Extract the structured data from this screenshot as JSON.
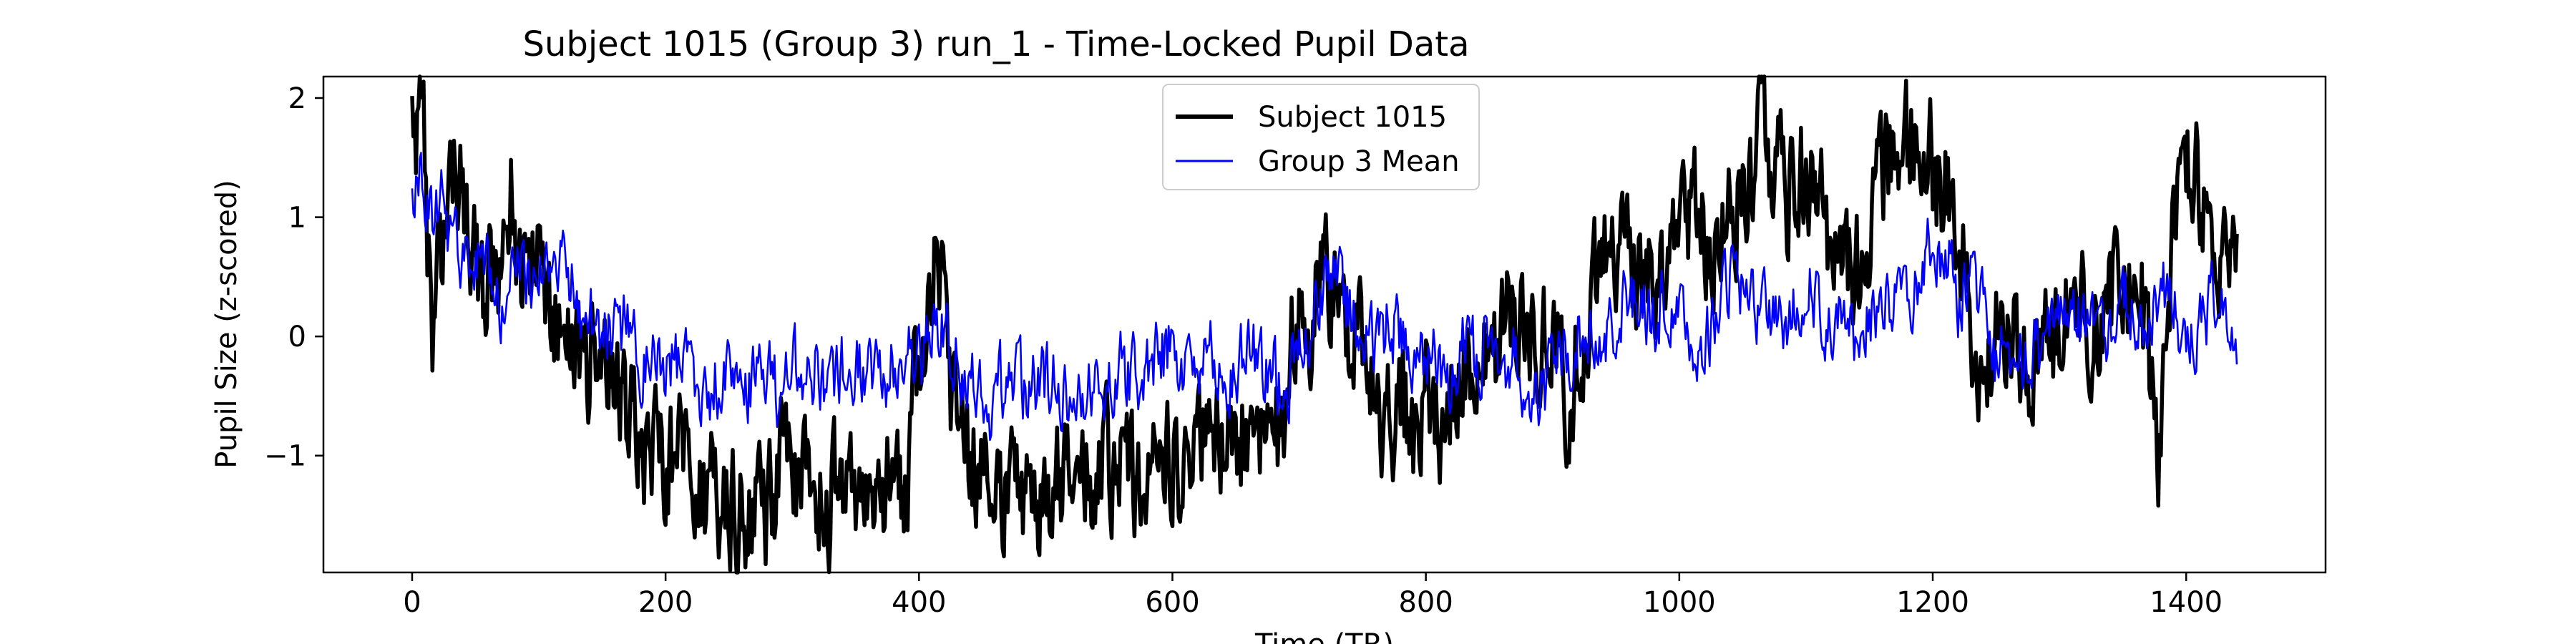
{
  "chart_data": {
    "type": "line",
    "title": "Subject 1015 (Group 3) run_1 - Time-Locked Pupil Data",
    "xlabel": "Time (TR)",
    "ylabel": "Pupil Size (z-scored)",
    "xlim": [
      -70,
      1510
    ],
    "ylim": [
      -1.98,
      2.18
    ],
    "x_ticks": [
      0,
      200,
      400,
      600,
      800,
      1000,
      1200,
      1400
    ],
    "y_ticks": [
      -1,
      0,
      1,
      2
    ],
    "x_tick_labels": [
      "0",
      "200",
      "400",
      "600",
      "800",
      "1000",
      "1200",
      "1400"
    ],
    "y_tick_labels": [
      "−1",
      "0",
      "1",
      "2"
    ],
    "grid": false,
    "legend_position": "top-center",
    "x_range": [
      0,
      1440
    ],
    "series": [
      {
        "name": "Subject 1015",
        "color": "#000000",
        "style": "thick",
        "anchors": [
          [
            0,
            1.9
          ],
          [
            3,
            1.5
          ],
          [
            6,
            1.9
          ],
          [
            9,
            1.6
          ],
          [
            12,
            0.7
          ],
          [
            16,
            -0.1
          ],
          [
            20,
            0.4
          ],
          [
            28,
            1.3
          ],
          [
            35,
            1.5
          ],
          [
            45,
            1.0
          ],
          [
            55,
            0.3
          ],
          [
            62,
            0.5
          ],
          [
            70,
            0.2
          ],
          [
            78,
            1.2
          ],
          [
            85,
            0.4
          ],
          [
            95,
            0.8
          ],
          [
            105,
            0.3
          ],
          [
            115,
            0.2
          ],
          [
            125,
            -0.2
          ],
          [
            140,
            -0.3
          ],
          [
            150,
            0.1
          ],
          [
            165,
            -0.6
          ],
          [
            175,
            -0.8
          ],
          [
            185,
            -1.0
          ],
          [
            195,
            -0.8
          ],
          [
            205,
            -1.1
          ],
          [
            215,
            -0.9
          ],
          [
            230,
            -1.4
          ],
          [
            245,
            -1.3
          ],
          [
            255,
            -1.5
          ],
          [
            270,
            -1.55
          ],
          [
            285,
            -1.35
          ],
          [
            295,
            -0.9
          ],
          [
            305,
            -1.2
          ],
          [
            320,
            -1.45
          ],
          [
            335,
            -1.3
          ],
          [
            350,
            -1.5
          ],
          [
            365,
            -1.2
          ],
          [
            380,
            -1.4
          ],
          [
            390,
            -1.2
          ],
          [
            398,
            -0.3
          ],
          [
            405,
            0.2
          ],
          [
            412,
            0.9
          ],
          [
            418,
            0.6
          ],
          [
            425,
            -0.5
          ],
          [
            440,
            -1.0
          ],
          [
            455,
            -1.3
          ],
          [
            470,
            -1.2
          ],
          [
            485,
            -1.35
          ],
          [
            495,
            -1.6
          ],
          [
            510,
            -1.3
          ],
          [
            525,
            -1.2
          ],
          [
            540,
            -1.1
          ],
          [
            555,
            -1.0
          ],
          [
            570,
            -1.3
          ],
          [
            585,
            -1.05
          ],
          [
            600,
            -1.1
          ],
          [
            615,
            -0.8
          ],
          [
            630,
            -1.0
          ],
          [
            645,
            -0.9
          ],
          [
            660,
            -0.7
          ],
          [
            675,
            -1.0
          ],
          [
            685,
            -0.8
          ],
          [
            693,
            -0.2
          ],
          [
            700,
            0.3
          ],
          [
            710,
            0.2
          ],
          [
            720,
            0.5
          ],
          [
            730,
            0.3
          ],
          [
            740,
            0.0
          ],
          [
            752,
            -0.2
          ],
          [
            765,
            -0.8
          ],
          [
            780,
            -0.5
          ],
          [
            790,
            -0.9
          ],
          [
            800,
            -0.4
          ],
          [
            810,
            -0.7
          ],
          [
            820,
            -0.5
          ],
          [
            835,
            -0.1
          ],
          [
            850,
            -0.2
          ],
          [
            865,
            0.2
          ],
          [
            880,
            0.0
          ],
          [
            890,
            -0.2
          ],
          [
            900,
            0.3
          ],
          [
            908,
            -0.1
          ],
          [
            913,
            -1.4
          ],
          [
            920,
            0.0
          ],
          [
            930,
            0.2
          ],
          [
            940,
            0.6
          ],
          [
            955,
            0.8
          ],
          [
            970,
            0.5
          ],
          [
            985,
            0.6
          ],
          [
            1000,
            0.7
          ],
          [
            1012,
            1.0
          ],
          [
            1025,
            0.8
          ],
          [
            1040,
            1.1
          ],
          [
            1055,
            1.3
          ],
          [
            1065,
            1.7
          ],
          [
            1075,
            1.4
          ],
          [
            1085,
            1.2
          ],
          [
            1095,
            1.5
          ],
          [
            1110,
            1.2
          ],
          [
            1125,
            0.6
          ],
          [
            1140,
            0.5
          ],
          [
            1155,
            1.2
          ],
          [
            1170,
            1.5
          ],
          [
            1185,
            1.7
          ],
          [
            1195,
            1.6
          ],
          [
            1205,
            1.2
          ],
          [
            1215,
            1.3
          ],
          [
            1225,
            0.6
          ],
          [
            1232,
            -0.1
          ],
          [
            1240,
            -0.3
          ],
          [
            1255,
            0.1
          ],
          [
            1270,
            -0.1
          ],
          [
            1285,
            -0.2
          ],
          [
            1300,
            0.0
          ],
          [
            1315,
            0.4
          ],
          [
            1325,
            -0.1
          ],
          [
            1335,
            0.2
          ],
          [
            1350,
            0.4
          ],
          [
            1365,
            0.3
          ],
          [
            1372,
            -0.4
          ],
          [
            1378,
            -1.0
          ],
          [
            1385,
            0.3
          ],
          [
            1392,
            1.1
          ],
          [
            1400,
            1.5
          ],
          [
            1410,
            1.2
          ],
          [
            1420,
            0.6
          ],
          [
            1430,
            0.9
          ],
          [
            1440,
            1.0
          ]
        ]
      },
      {
        "name": "Group 3 Mean",
        "color": "#0000ff",
        "style": "thin",
        "anchors": [
          [
            0,
            1.15
          ],
          [
            4,
            1.3
          ],
          [
            7,
            1.6
          ],
          [
            10,
            1.1
          ],
          [
            15,
            1.0
          ],
          [
            20,
            1.2
          ],
          [
            30,
            0.9
          ],
          [
            40,
            0.7
          ],
          [
            50,
            0.5
          ],
          [
            60,
            0.6
          ],
          [
            70,
            0.3
          ],
          [
            80,
            0.7
          ],
          [
            90,
            0.5
          ],
          [
            100,
            0.5
          ],
          [
            110,
            0.4
          ],
          [
            120,
            0.8
          ],
          [
            130,
            0.3
          ],
          [
            140,
            0.1
          ],
          [
            150,
            0.1
          ],
          [
            160,
            0.0
          ],
          [
            170,
            0.1
          ],
          [
            180,
            -0.2
          ],
          [
            190,
            -0.1
          ],
          [
            200,
            -0.3
          ],
          [
            210,
            -0.2
          ],
          [
            220,
            -0.3
          ],
          [
            230,
            -0.5
          ],
          [
            240,
            -0.4
          ],
          [
            250,
            -0.4
          ],
          [
            260,
            -0.5
          ],
          [
            270,
            -0.4
          ],
          [
            280,
            -0.3
          ],
          [
            290,
            -0.5
          ],
          [
            300,
            -0.3
          ],
          [
            310,
            -0.2
          ],
          [
            320,
            -0.3
          ],
          [
            330,
            -0.4
          ],
          [
            340,
            -0.2
          ],
          [
            350,
            -0.3
          ],
          [
            360,
            -0.3
          ],
          [
            370,
            -0.4
          ],
          [
            380,
            -0.2
          ],
          [
            390,
            -0.2
          ],
          [
            400,
            -0.2
          ],
          [
            410,
            0.0
          ],
          [
            418,
            0.2
          ],
          [
            425,
            0.0
          ],
          [
            435,
            -0.3
          ],
          [
            445,
            -0.5
          ],
          [
            455,
            -0.6
          ],
          [
            465,
            -0.4
          ],
          [
            475,
            -0.3
          ],
          [
            485,
            -0.5
          ],
          [
            495,
            -0.3
          ],
          [
            510,
            -0.4
          ],
          [
            525,
            -0.5
          ],
          [
            540,
            -0.4
          ],
          [
            555,
            -0.3
          ],
          [
            570,
            -0.3
          ],
          [
            585,
            -0.2
          ],
          [
            600,
            -0.1
          ],
          [
            615,
            -0.3
          ],
          [
            630,
            -0.2
          ],
          [
            645,
            -0.3
          ],
          [
            660,
            -0.1
          ],
          [
            675,
            -0.3
          ],
          [
            690,
            -0.4
          ],
          [
            700,
            -0.2
          ],
          [
            710,
            0.1
          ],
          [
            720,
            0.4
          ],
          [
            730,
            0.5
          ],
          [
            740,
            0.2
          ],
          [
            750,
            0.0
          ],
          [
            760,
            -0.1
          ],
          [
            770,
            0.1
          ],
          [
            780,
            0.0
          ],
          [
            790,
            -0.1
          ],
          [
            800,
            -0.3
          ],
          [
            810,
            -0.2
          ],
          [
            820,
            -0.4
          ],
          [
            830,
            -0.1
          ],
          [
            840,
            -0.2
          ],
          [
            850,
            0.0
          ],
          [
            860,
            -0.2
          ],
          [
            870,
            -0.1
          ],
          [
            880,
            -0.4
          ],
          [
            890,
            -0.5
          ],
          [
            900,
            -0.3
          ],
          [
            910,
            -0.2
          ],
          [
            920,
            0.0
          ],
          [
            930,
            0.1
          ],
          [
            940,
            0.0
          ],
          [
            950,
            0.2
          ],
          [
            960,
            0.3
          ],
          [
            970,
            0.3
          ],
          [
            980,
            0.1
          ],
          [
            990,
            0.4
          ],
          [
            1000,
            0.2
          ],
          [
            1010,
            -0.2
          ],
          [
            1020,
            0.0
          ],
          [
            1030,
            0.2
          ],
          [
            1040,
            0.5
          ],
          [
            1050,
            0.3
          ],
          [
            1060,
            0.2
          ],
          [
            1070,
            0.3
          ],
          [
            1080,
            0.1
          ],
          [
            1090,
            0.2
          ],
          [
            1100,
            0.4
          ],
          [
            1110,
            0.3
          ],
          [
            1120,
            0.1
          ],
          [
            1130,
            0.3
          ],
          [
            1140,
            0.0
          ],
          [
            1150,
            0.1
          ],
          [
            1160,
            0.3
          ],
          [
            1170,
            0.2
          ],
          [
            1180,
            0.4
          ],
          [
            1190,
            0.5
          ],
          [
            1200,
            0.8
          ],
          [
            1210,
            0.7
          ],
          [
            1220,
            0.3
          ],
          [
            1230,
            0.5
          ],
          [
            1240,
            0.2
          ],
          [
            1250,
            -0.2
          ],
          [
            1260,
            -0.1
          ],
          [
            1270,
            -0.2
          ],
          [
            1280,
            0.0
          ],
          [
            1290,
            -0.1
          ],
          [
            1300,
            0.1
          ],
          [
            1310,
            0.3
          ],
          [
            1320,
            0.0
          ],
          [
            1330,
            0.2
          ],
          [
            1340,
            0.1
          ],
          [
            1350,
            0.3
          ],
          [
            1360,
            0.2
          ],
          [
            1370,
            0.1
          ],
          [
            1380,
            0.4
          ],
          [
            1390,
            0.2
          ],
          [
            1400,
            0.1
          ],
          [
            1410,
            0.0
          ],
          [
            1420,
            0.3
          ],
          [
            1430,
            0.1
          ],
          [
            1440,
            0.0
          ]
        ]
      }
    ]
  }
}
